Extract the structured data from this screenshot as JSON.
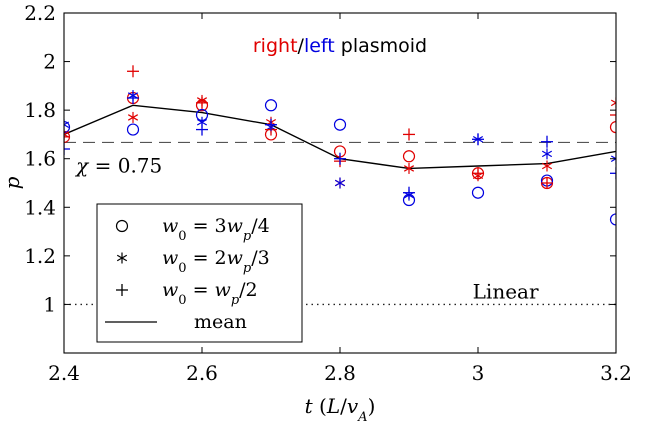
{
  "chart_data": {
    "type": "scatter",
    "title": "",
    "title_parts": [
      {
        "text": "right",
        "color": "#e00000"
      },
      {
        "text": "/",
        "color": "#000000"
      },
      {
        "text": "left",
        "color": "#0000e0"
      },
      {
        "text": " plasmoid",
        "color": "#000000"
      }
    ],
    "xlabel": "t (L/v_A)",
    "ylabel": "p",
    "xlim": [
      2.4,
      3.2
    ],
    "ylim": [
      0.8,
      2.2
    ],
    "xticks": [
      2.4,
      2.6,
      2.8,
      3.0,
      3.2
    ],
    "xtick_labels": [
      "2.4",
      "2.6",
      "2.8",
      "3",
      "3.2"
    ],
    "yticks": [
      1.0,
      1.2,
      1.4,
      1.6,
      1.8,
      2.0,
      2.2
    ],
    "ytick_labels": [
      "1",
      "1.2",
      "1.4",
      "1.6",
      "1.8",
      "2",
      "2.2"
    ],
    "grid": false,
    "legend_position": "bottom-left",
    "colors": {
      "right": "#e00000",
      "left": "#0000e0",
      "mean": "#000000"
    },
    "legend": [
      {
        "marker": "circle",
        "label": "w_0 = 3w_p/4"
      },
      {
        "marker": "asterisk",
        "label": "w_0 = 2w_p/3"
      },
      {
        "marker": "plus",
        "label": "w_0 = w_p/2"
      },
      {
        "marker": "line",
        "label": "mean"
      }
    ],
    "x": [
      2.4,
      2.5,
      2.6,
      2.7,
      2.8,
      2.9,
      3.0,
      3.1,
      3.2
    ],
    "series": [
      {
        "name": "w_0 = 3w_p/4",
        "side": "right",
        "marker": "circle",
        "values": [
          1.69,
          1.85,
          1.82,
          1.7,
          1.63,
          1.61,
          1.54,
          1.5,
          1.73
        ]
      },
      {
        "name": "w_0 = 3w_p/4",
        "side": "left",
        "marker": "circle",
        "values": [
          1.73,
          1.72,
          1.78,
          1.82,
          1.74,
          1.43,
          1.46,
          1.51,
          1.35
        ]
      },
      {
        "name": "w_0 = 2w_p/3",
        "side": "right",
        "marker": "asterisk",
        "values": [
          1.7,
          1.77,
          1.84,
          1.75,
          1.5,
          1.56,
          1.53,
          1.57,
          1.83
        ]
      },
      {
        "name": "w_0 = 2w_p/3",
        "side": "left",
        "marker": "asterisk",
        "values": [
          1.74,
          1.86,
          1.75,
          1.73,
          1.5,
          1.45,
          1.68,
          1.62,
          1.6
        ]
      },
      {
        "name": "w_0 = w_p/2",
        "side": "right",
        "marker": "plus",
        "values": [
          1.69,
          1.96,
          1.83,
          1.72,
          1.59,
          1.7,
          1.54,
          1.5,
          1.78
        ]
      },
      {
        "name": "w_0 = w_p/2",
        "side": "left",
        "marker": "plus",
        "values": [
          1.64,
          1.85,
          1.72,
          1.74,
          1.6,
          1.46,
          1.68,
          1.67,
          1.54
        ]
      },
      {
        "name": "mean",
        "marker": "line",
        "values": [
          1.7,
          1.82,
          1.79,
          1.74,
          1.6,
          1.56,
          1.57,
          1.58,
          1.63
        ]
      }
    ],
    "reference_lines": [
      {
        "y": 1.667,
        "style": "dashed",
        "label": "χ = 0.75"
      },
      {
        "y": 1.0,
        "style": "dotted",
        "label": "Linear"
      }
    ]
  }
}
